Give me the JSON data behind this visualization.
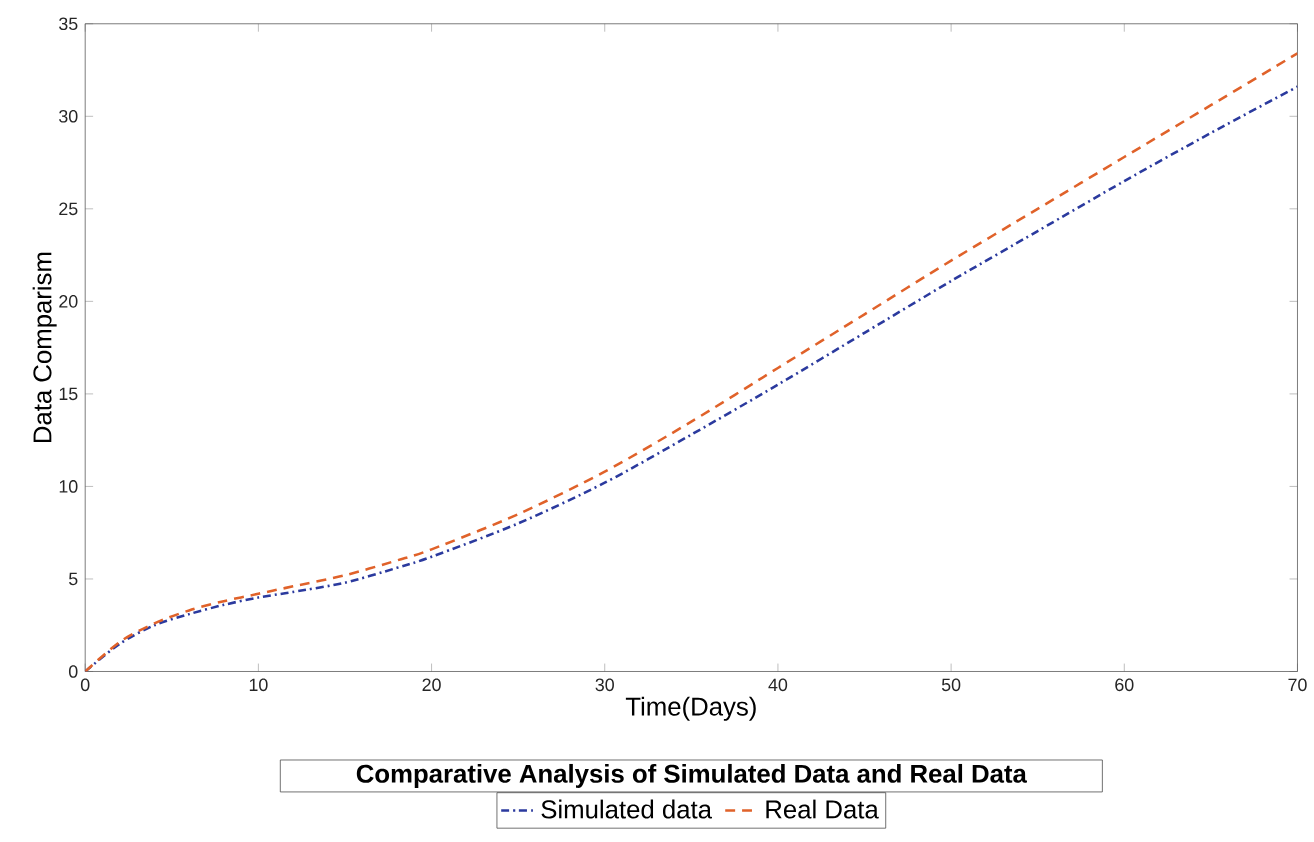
{
  "chart_data": {
    "type": "line",
    "xlabel": "Time(Days)",
    "ylabel": "Data Comparism",
    "legend_title": "Comparative Analysis of Simulated Data and Real Data",
    "legend": "bottom",
    "grid": false,
    "marker": "none",
    "x": [
      0,
      2,
      4,
      6,
      8,
      10,
      12,
      15,
      18,
      20,
      25,
      30,
      35,
      40,
      45,
      50,
      55,
      60,
      65,
      70
    ],
    "xlim": [
      0,
      70
    ],
    "ylim": [
      0,
      35
    ],
    "xticks": [
      0,
      10,
      20,
      30,
      40,
      50,
      60,
      70
    ],
    "yticks": [
      0,
      5,
      10,
      15,
      20,
      25,
      30,
      35
    ],
    "series": [
      {
        "name": "Simulated data",
        "color": "#2b3a9e",
        "line_style": "dashdot",
        "values": [
          0,
          1.5,
          2.5,
          3.1,
          3.6,
          4.0,
          4.3,
          4.8,
          5.6,
          6.2,
          8.0,
          10.2,
          12.8,
          15.5,
          18.3,
          21.1,
          23.8,
          26.5,
          29.1,
          31.6
        ]
      },
      {
        "name": "Real Data",
        "color": "#e0622a",
        "line_style": "dashed",
        "values": [
          0,
          1.6,
          2.6,
          3.3,
          3.8,
          4.2,
          4.6,
          5.2,
          6.0,
          6.6,
          8.5,
          10.8,
          13.5,
          16.4,
          19.3,
          22.2,
          25.0,
          27.8,
          30.6,
          33.4
        ]
      }
    ]
  }
}
